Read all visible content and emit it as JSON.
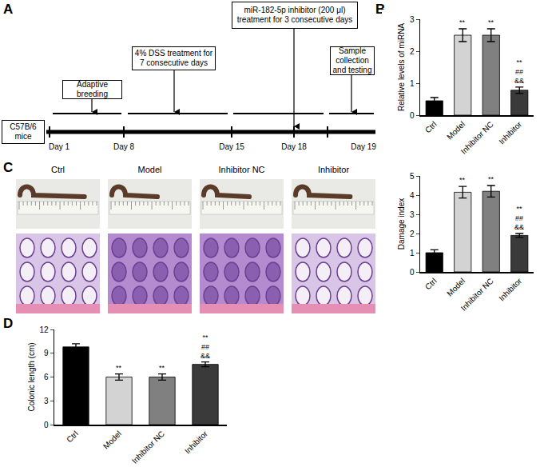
{
  "panel_labels": [
    "A",
    "B",
    "C",
    "D"
  ],
  "timeline": {
    "start": "C57B/6 mice",
    "days": [
      "Day 1",
      "Day 8",
      "Day 15",
      "Day 18",
      "Day 19"
    ],
    "steps": [
      "Adaptive breeding",
      "4% DSS treatment for 7 consecutive days",
      "miR-182-5p inhibitor (200 μl) treatment for 3 consecutive days",
      "Sample collection and testing"
    ]
  },
  "images": {
    "labels": [
      "Ctrl",
      "Model",
      "Inhibitor NC",
      "Inhibitor"
    ]
  },
  "chart_data": [
    {
      "type": "bar",
      "y_label": "Relative levels of miRNA",
      "categories": [
        "Ctrl",
        "Model",
        "Inhibitor NC",
        "Inhibitor"
      ],
      "values": [
        0.45,
        2.5,
        2.5,
        0.78
      ],
      "errors": [
        0.1,
        0.2,
        0.2,
        0.1
      ],
      "colors": [
        "#000000",
        "#d3d3d3",
        "#808080",
        "#3a3a3a"
      ],
      "ylim": [
        0,
        3
      ],
      "yticks": [
        0,
        1,
        2,
        3
      ],
      "annotations": [
        {
          "category": "Model",
          "lines": [
            "**"
          ]
        },
        {
          "category": "Inhibitor NC",
          "lines": [
            "**"
          ]
        },
        {
          "category": "Inhibitor",
          "lines": [
            "**",
            "##",
            "&&"
          ]
        }
      ]
    },
    {
      "type": "bar",
      "y_label": "Damage index",
      "categories": [
        "Ctrl",
        "Model",
        "Inhibitor NC",
        "Inhibitor"
      ],
      "values": [
        1.0,
        4.15,
        4.2,
        1.9
      ],
      "errors": [
        0.15,
        0.3,
        0.3,
        0.1
      ],
      "colors": [
        "#000000",
        "#d3d3d3",
        "#808080",
        "#3a3a3a"
      ],
      "ylim": [
        0,
        5
      ],
      "yticks": [
        0,
        1,
        2,
        3,
        4,
        5
      ],
      "annotations": [
        {
          "category": "Model",
          "lines": [
            "**"
          ]
        },
        {
          "category": "Inhibitor NC",
          "lines": [
            "**"
          ]
        },
        {
          "category": "Inhibitor",
          "lines": [
            "**",
            "##",
            "&&"
          ]
        }
      ]
    },
    {
      "type": "bar",
      "y_label": "Colonic length (cm)",
      "categories": [
        "Ctrl",
        "Model",
        "Inhibitor NC",
        "Inhibitor"
      ],
      "values": [
        9.8,
        6.0,
        6.0,
        7.6
      ],
      "errors": [
        0.4,
        0.4,
        0.4,
        0.3
      ],
      "colors": [
        "#000000",
        "#d3d3d3",
        "#808080",
        "#3a3a3a"
      ],
      "ylim": [
        0,
        12
      ],
      "yticks": [
        0,
        3,
        6,
        9,
        12
      ],
      "annotations": [
        {
          "category": "Model",
          "lines": [
            "**"
          ]
        },
        {
          "category": "Inhibitor NC",
          "lines": [
            "**"
          ]
        },
        {
          "category": "Inhibitor",
          "lines": [
            "**",
            "##",
            "&&"
          ]
        }
      ]
    }
  ]
}
